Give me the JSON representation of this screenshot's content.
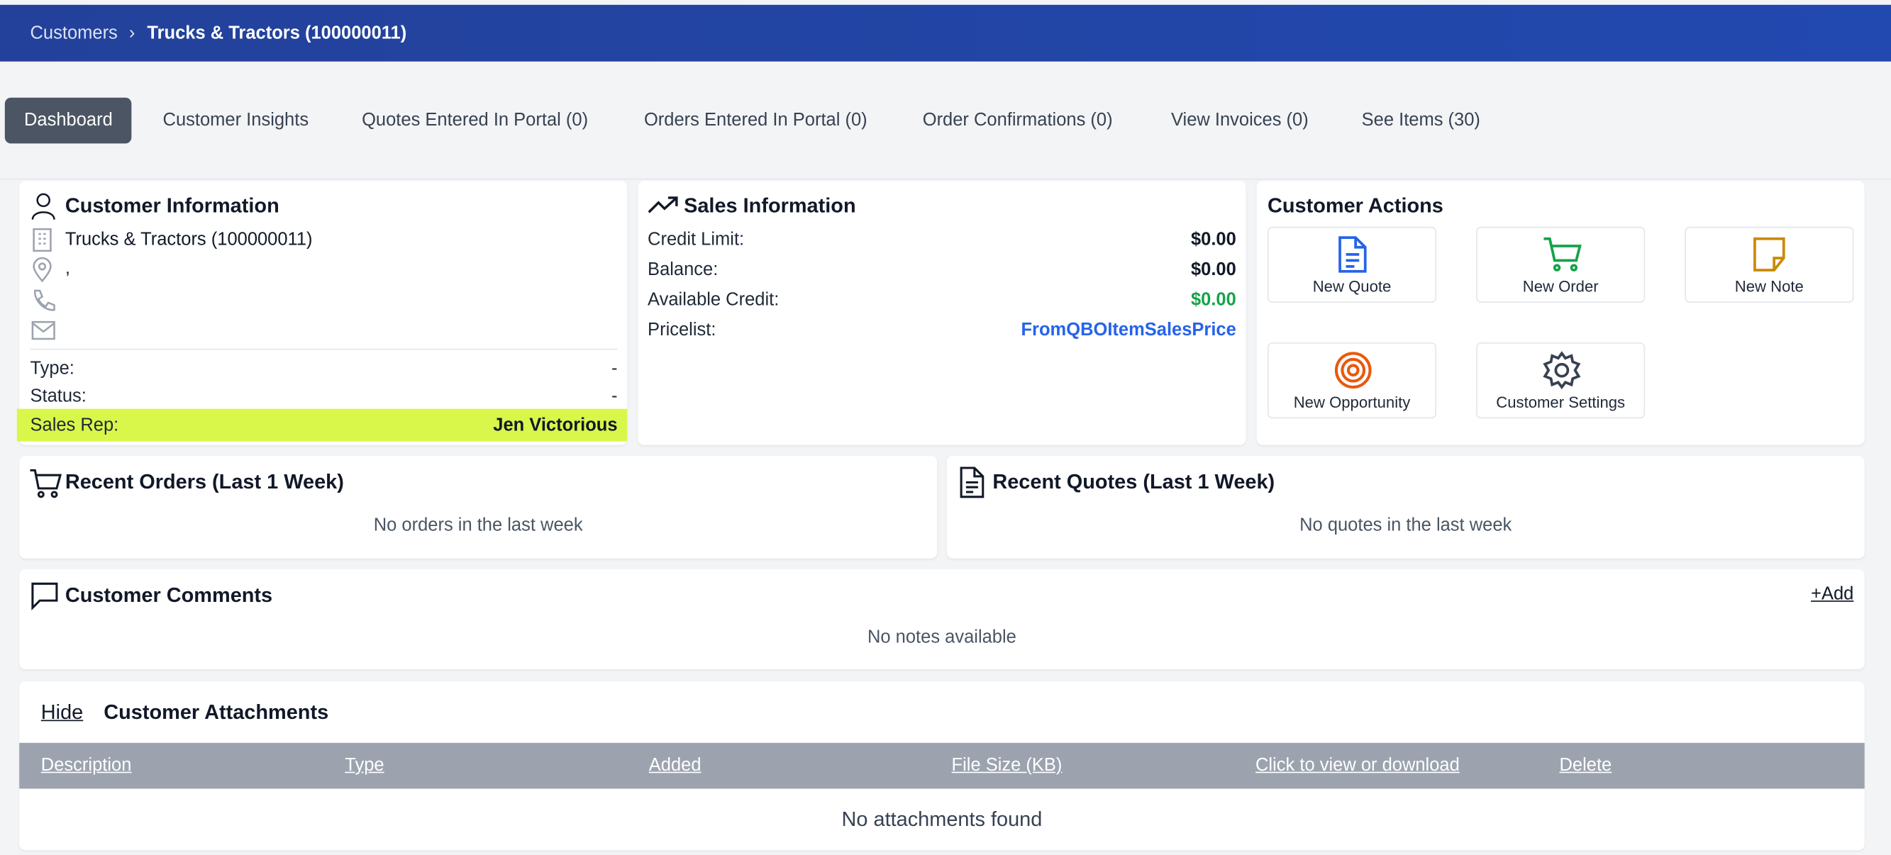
{
  "breadcrumb": {
    "parent": "Customers",
    "separator": "›",
    "current": "Trucks & Tractors (100000011)"
  },
  "tabs": [
    "Dashboard",
    "Customer Insights",
    "Quotes Entered In Portal (0)",
    "Orders Entered In Portal (0)",
    "Order Confirmations (0)",
    "View Invoices (0)",
    "See Items (30)"
  ],
  "customer_info": {
    "title": "Customer Information",
    "name": "Trucks & Tractors (100000011)",
    "address": ",",
    "fields": [
      {
        "label": "Type:",
        "value": "-"
      },
      {
        "label": "Status:",
        "value": "-"
      },
      {
        "label": "Sales Rep:",
        "value": "Jen Victorious"
      }
    ]
  },
  "sales_info": {
    "title": "Sales Information",
    "rows": [
      {
        "label": "Credit Limit:",
        "value": "$0.00"
      },
      {
        "label": "Balance:",
        "value": "$0.00"
      },
      {
        "label": "Available Credit:",
        "value": "$0.00"
      },
      {
        "label": "Pricelist:",
        "value": "FromQBOItemSalesPrice"
      }
    ]
  },
  "customer_actions": {
    "title": "Customer Actions",
    "actions": [
      "New Quote",
      "New Order",
      "New Note",
      "New Opportunity",
      "Customer Settings"
    ]
  },
  "recent_orders": {
    "title": "Recent Orders (Last 1 Week)",
    "empty": "No orders in the last week"
  },
  "recent_quotes": {
    "title": "Recent Quotes (Last 1 Week)",
    "empty": "No quotes in the last week"
  },
  "comments": {
    "title": "Customer Comments",
    "add": "+Add",
    "empty": "No notes available"
  },
  "attachments": {
    "hide": "Hide",
    "title": "Customer Attachments",
    "columns": [
      "Description",
      "Type",
      "Added",
      "File Size (KB)",
      "Click to view or download",
      "Delete"
    ],
    "empty": "No attachments found"
  }
}
